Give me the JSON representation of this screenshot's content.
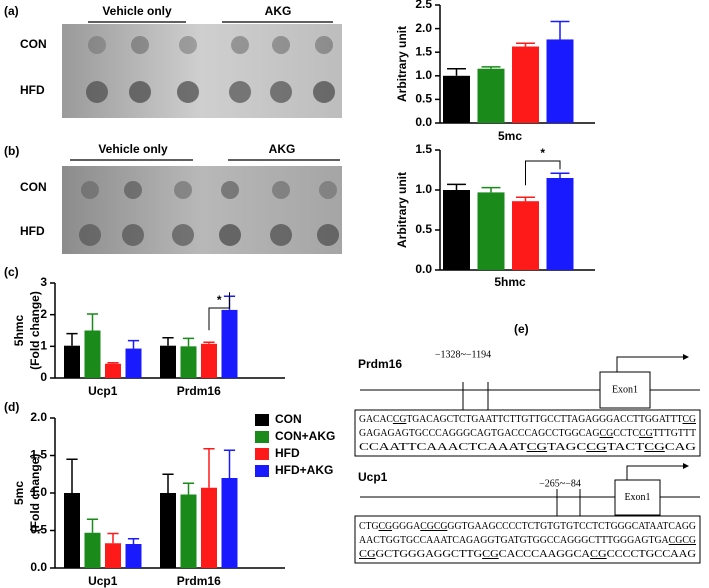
{
  "panel_labels": [
    "(a)",
    "(b)",
    "(c)",
    "(d)",
    "(e)"
  ],
  "blots": [
    {
      "groups": [
        "Vehicle only",
        "AKG"
      ],
      "rows": [
        "CON",
        "HFD"
      ]
    },
    {
      "groups": [
        "Vehicle only",
        "AKG"
      ],
      "rows": [
        "CON",
        "HFD"
      ]
    }
  ],
  "chart_data": [
    {
      "type": "bar",
      "categories": [
        null,
        null,
        null,
        null
      ],
      "values": [
        1.0,
        1.15,
        1.62,
        1.77
      ],
      "errors": [
        0.15,
        0.04,
        0.07,
        0.38
      ],
      "colors": [
        "#000000",
        "#1a8a1a",
        "#ff1a1a",
        "#1a1aff"
      ],
      "xlabel": "5mc",
      "ylabel": [
        "Arbitrary unit"
      ],
      "ylim": [
        0,
        2.5
      ],
      "yticks": [
        {
          "value": 0,
          "label": "0.0"
        },
        0.5,
        {
          "value": 1,
          "label": "1.0"
        },
        1.5,
        {
          "value": 2,
          "label": "2.0"
        },
        2.5
      ]
    },
    {
      "type": "bar",
      "categories": [
        null,
        null,
        null,
        null
      ],
      "values": [
        1.0,
        0.97,
        0.86,
        1.15
      ],
      "errors": [
        0.07,
        0.06,
        0.05,
        0.06
      ],
      "colors": [
        "#000000",
        "#1a8a1a",
        "#ff1a1a",
        "#1a1aff"
      ],
      "xlabel": "5hmc",
      "ylabel": [
        "Arbitrary unit"
      ],
      "significance": "*",
      "ylim": [
        0,
        1.5
      ],
      "yticks": [
        {
          "value": 0,
          "label": "0.0"
        },
        0.5,
        {
          "value": 1,
          "label": "1.0"
        },
        1.5
      ]
    },
    {
      "type": "bar",
      "categories": [
        "Ucp1",
        "Prdm16"
      ],
      "ylabel": [
        "5hmc",
        "(Fold change)"
      ],
      "significance": "*",
      "series": [
        {
          "color": "#000000",
          "values": [
            1.02,
            1.02
          ],
          "errors": [
            0.38,
            0.25
          ]
        },
        {
          "color": "#1a8a1a",
          "values": [
            1.5,
            1.0
          ],
          "errors": [
            0.52,
            0.25
          ]
        },
        {
          "color": "#ff1a1a",
          "values": [
            0.45,
            1.08
          ],
          "errors": [
            0.03,
            0.05
          ]
        },
        {
          "color": "#1a1aff",
          "values": [
            0.93,
            2.15
          ],
          "errors": [
            0.25,
            0.43
          ]
        }
      ],
      "ylim": [
        0,
        3
      ],
      "yticks": [
        0,
        1,
        2,
        3
      ]
    },
    {
      "type": "bar",
      "categories": [
        "Ucp1",
        "Prdm16"
      ],
      "ylabel": [
        "5mc",
        "(Fold change)"
      ],
      "legend": "upper right",
      "series": [
        {
          "name": "CON",
          "color": "#000000",
          "values": [
            1.0,
            1.0
          ],
          "errors": [
            0.45,
            0.25
          ]
        },
        {
          "name": "CON+AKG",
          "color": "#1a8a1a",
          "values": [
            0.47,
            0.98
          ],
          "errors": [
            0.18,
            0.15
          ]
        },
        {
          "name": "HFD",
          "color": "#ff1a1a",
          "values": [
            0.33,
            1.07
          ],
          "errors": [
            0.13,
            0.52
          ]
        },
        {
          "name": "HFD+AKG",
          "color": "#1a1aff",
          "values": [
            0.32,
            1.2
          ],
          "errors": [
            0.07,
            0.37
          ]
        }
      ],
      "ylim": [
        0,
        2
      ],
      "yticks": [
        {
          "value": 0,
          "label": "0.0"
        },
        0.5,
        {
          "value": 1,
          "label": "1.0"
        },
        1.5,
        {
          "value": 2,
          "label": "2.0"
        }
      ]
    }
  ],
  "gene_diagram": [
    {
      "gene": "Prdm16",
      "region": "−1328~−1194",
      "exon": "Exon1",
      "sequence": [
        [
          {
            "text": "GACAC"
          },
          {
            "text": "CG",
            "underline": true
          },
          {
            "text": "TGACAGCTCTGAATTCTTGTTGCCTTAGAGGGACCTTGGATTT"
          },
          {
            "text": "CG",
            "underline": true
          }
        ],
        [
          {
            "text": "GAGAGAGTGCCCAGGGCAGTGACCCAGCCTGGCAG"
          },
          {
            "text": "CG",
            "underline": true
          },
          {
            "text": "CCTC"
          },
          {
            "text": "CG",
            "underline": true
          },
          {
            "text": "TTTGTTT"
          }
        ],
        [
          {
            "text": "CCAATTCAAACTCAAAT"
          },
          {
            "text": "CG",
            "underline": true
          },
          {
            "text": "TAGC"
          },
          {
            "text": "CG",
            "underline": true
          },
          {
            "text": "TACT"
          },
          {
            "text": "CG",
            "underline": true
          },
          {
            "text": "CAG"
          }
        ]
      ]
    },
    {
      "gene": "Ucp1",
      "region": "−265~−84",
      "exon": "Exon1",
      "sequence": [
        [
          {
            "text": "CTG"
          },
          {
            "text": "CG",
            "underline": true
          },
          {
            "text": "GGGA"
          },
          {
            "text": "CGCG",
            "underline": true
          },
          {
            "text": "GGTGAAGCCCCTCTGTGTGTCCTCTGGGCATAATCAGG"
          }
        ],
        [
          {
            "text": "AACTGGTGCCAAATCAGAGGTGATGTGGCCAGGGCTTTGGGAGTGA"
          },
          {
            "text": "CGCG",
            "underline": true
          }
        ],
        [
          {
            "text": "CG",
            "underline": true
          },
          {
            "text": "GCTGGGAGGCTTG"
          },
          {
            "text": "CG",
            "underline": true
          },
          {
            "text": "CACCCAAGGCA"
          },
          {
            "text": "CG",
            "underline": true
          },
          {
            "text": "CCCCTGCCAAG"
          }
        ]
      ]
    }
  ]
}
